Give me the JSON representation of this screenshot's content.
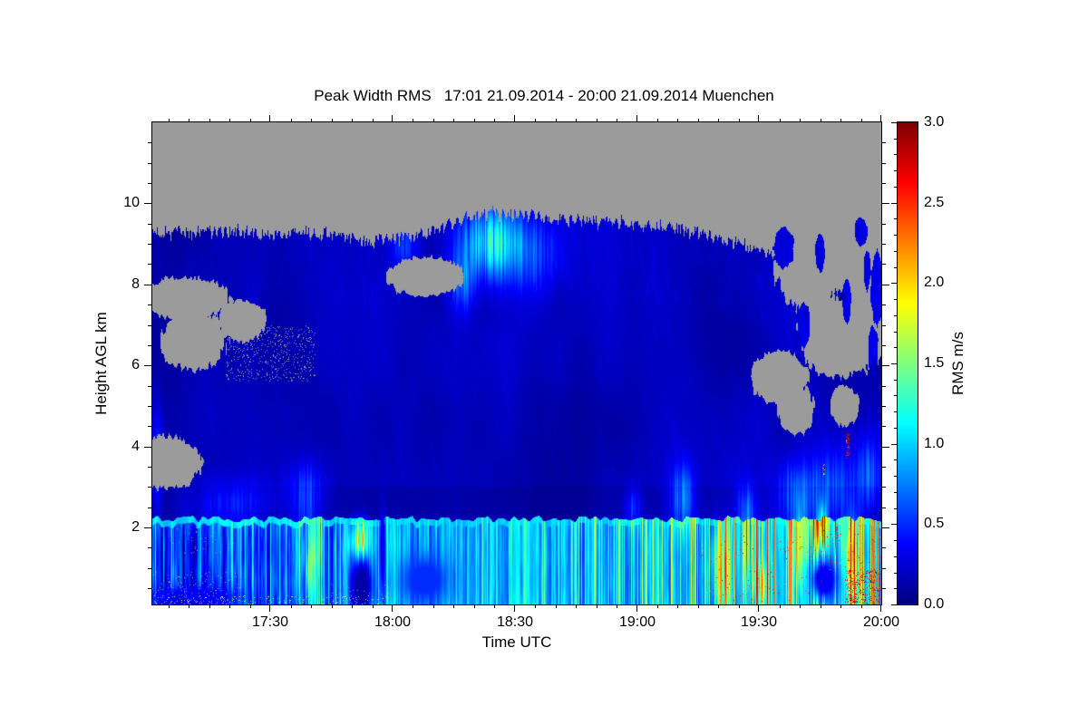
{
  "title": "Peak Width RMS   17:01 21.09.2014 - 20:00 21.09.2014 Muenchen",
  "background_color": "#ffffff",
  "chart_data": {
    "type": "heatmap",
    "title": "Peak Width RMS   17:01 21.09.2014 - 20:00 21.09.2014 Muenchen",
    "station": "Muenchen",
    "time_start": "17:01 21.09.2014",
    "time_end": "20:00 21.09.2014",
    "xlabel": "Time UTC",
    "ylabel": "Height AGL km",
    "x_ticks": [
      "17:30",
      "18:00",
      "18:30",
      "19:00",
      "19:30",
      "20:00"
    ],
    "x_tick_minutes": [
      29,
      59,
      89,
      119,
      149,
      179
    ],
    "x_minor_phase_min": 4,
    "x_minor_step_min": 5,
    "duration_min": 179,
    "y_ticks": [
      "2",
      "4",
      "6",
      "8",
      "10"
    ],
    "y_tick_values": [
      2,
      4,
      6,
      8,
      10
    ],
    "y_minor_step_km": 0.5,
    "y_range_km": [
      0.1,
      12.0
    ],
    "grid": false,
    "colorbar": {
      "label": "RMS m/s",
      "ticks": [
        "0.0",
        "0.5",
        "1.0",
        "1.5",
        "2.0",
        "2.5",
        "3.0"
      ],
      "tick_values": [
        0,
        0.5,
        1,
        1.5,
        2,
        2.5,
        3
      ],
      "minor_step": 0.1,
      "range": [
        0,
        3
      ],
      "colormap": "jet"
    },
    "no_data_color": "#9b9b9b",
    "field": {
      "description": "RMS of peak width (m/s) vs time and height. Gray = no data. Cloud/aerosol layer below ~9.3-9.8 km cloud top with low RMS (~0.2, dark blue); bright cyan convective boundary layer below ~2.2 km (~0.8-1.1); cirrus fallstreaks ~18:20-18:40 at 8-9.7 km; data gaps at left 3-8 km, an oval gap ~18:00-18:15 at 8.2 km, and large broken gaps after ~19:35 at 4-9.5 km; yellow-orange turbulence streaks in the boundary layer (esp. 17:50 and after 19:15) and red specks (RMS>2.2) near the ground after 19:45.",
      "free_base": 0.17,
      "bl_top_km": 2.2,
      "edge_jitter_km": 0.18,
      "dark_band": {
        "h0": 2.25,
        "h1": 3.0,
        "delta": 0.05
      },
      "cloud_top_km": [
        [
          0,
          9.3
        ],
        [
          10,
          9.25
        ],
        [
          20,
          9.32
        ],
        [
          30,
          9.2
        ],
        [
          38,
          9.28
        ],
        [
          46,
          9.2
        ],
        [
          54,
          9.05
        ],
        [
          62,
          9.15
        ],
        [
          70,
          9.35
        ],
        [
          77,
          9.65
        ],
        [
          83,
          9.75
        ],
        [
          90,
          9.7
        ],
        [
          98,
          9.63
        ],
        [
          108,
          9.55
        ],
        [
          118,
          9.48
        ],
        [
          128,
          9.4
        ],
        [
          136,
          9.22
        ],
        [
          144,
          9.0
        ],
        [
          150,
          8.8
        ],
        [
          156,
          8.55
        ],
        [
          162,
          8.4
        ],
        [
          167,
          8.5
        ],
        [
          172,
          8.6
        ],
        [
          179,
          8.45
        ]
      ],
      "bl_base": [
        [
          0,
          0.55
        ],
        [
          34,
          0.6
        ],
        [
          44,
          0.78
        ],
        [
          49,
          0.7
        ],
        [
          53,
          0.8
        ],
        [
          58,
          0.88
        ],
        [
          66,
          0.8
        ],
        [
          76,
          0.82
        ],
        [
          88,
          0.88
        ],
        [
          100,
          0.9
        ],
        [
          112,
          0.82
        ],
        [
          122,
          0.88
        ],
        [
          132,
          0.82
        ],
        [
          142,
          0.85
        ],
        [
          152,
          0.95
        ],
        [
          166,
          0.98
        ],
        [
          179,
          0.92
        ]
      ],
      "bl_contrast": [
        [
          0,
          1.55
        ],
        [
          42,
          1.55
        ],
        [
          50,
          1.2
        ],
        [
          58,
          1.0
        ],
        [
          179,
          1.0
        ]
      ],
      "streak_boost": [
        [
          0,
          1.0
        ],
        [
          45,
          1.0
        ],
        [
          60,
          0.6
        ],
        [
          95,
          0.7
        ],
        [
          110,
          1.0
        ],
        [
          130,
          1.2
        ],
        [
          140,
          1.8
        ],
        [
          160,
          2.2
        ],
        [
          179,
          2.3
        ]
      ],
      "plumes": [
        {
          "t": 83,
          "h": 9.05,
          "tw": 7,
          "hw": 0.85,
          "a": 0.9
        },
        {
          "t": 93,
          "h": 8.8,
          "tw": 8,
          "hw": 0.95,
          "a": 0.4
        },
        {
          "t": 76,
          "h": 8.05,
          "tw": 3,
          "hw": 0.75,
          "a": 0.5
        },
        {
          "t": 62,
          "h": 8.9,
          "tw": 3,
          "hw": 0.55,
          "a": 0.35
        },
        {
          "t": 20,
          "h": 2.6,
          "tw": 12,
          "hw": 0.55,
          "a": 0.3
        },
        {
          "t": 38,
          "h": 2.9,
          "tw": 4,
          "hw": 0.75,
          "a": 0.42
        },
        {
          "t": 130,
          "h": 2.7,
          "tw": 3,
          "hw": 0.85,
          "a": 0.55
        },
        {
          "t": 118,
          "h": 2.5,
          "tw": 2,
          "hw": 0.5,
          "a": 0.4
        },
        {
          "t": 158,
          "h": 2.8,
          "tw": 5,
          "hw": 0.85,
          "a": 0.5
        },
        {
          "t": 167,
          "h": 2.9,
          "tw": 6,
          "hw": 1.0,
          "a": 0.45
        },
        {
          "t": 176,
          "h": 3.3,
          "tw": 3,
          "hw": 0.95,
          "a": 0.45
        },
        {
          "t": 51,
          "h": 1.6,
          "tw": 2.2,
          "hw": 0.5,
          "a": 1.15
        },
        {
          "t": 38,
          "h": 1.2,
          "tw": 2.5,
          "hw": 1.0,
          "a": 0.6
        },
        {
          "t": 140,
          "h": 1.0,
          "tw": 3,
          "hw": 0.9,
          "a": 0.5
        },
        {
          "t": 146,
          "h": 1.5,
          "tw": 2,
          "hw": 0.8,
          "a": 0.55
        },
        {
          "t": 159,
          "h": 1.4,
          "tw": 1.6,
          "hw": 1.0,
          "a": 0.85
        },
        {
          "t": 164.5,
          "h": 2.0,
          "tw": 1.2,
          "hw": 0.55,
          "a": 1.0
        },
        {
          "t": 172,
          "h": 1.2,
          "tw": 2,
          "hw": 1.0,
          "a": 0.9
        },
        {
          "t": 150,
          "h": 0.6,
          "tw": 2,
          "hw": 0.5,
          "a": 0.6
        },
        {
          "t": 1,
          "h": 3.5,
          "tw": 1.2,
          "hw": 1.3,
          "a": 0.5
        },
        {
          "t": 146,
          "h": 2.5,
          "tw": 2.5,
          "hw": 0.6,
          "a": 0.4
        }
      ],
      "darks": [
        {
          "t": 51.5,
          "h": 0.55,
          "tw": 2.6,
          "hw": 0.7,
          "to": 0.12
        },
        {
          "t": 56.5,
          "h": 1.5,
          "tw": 0.7,
          "hw": 1.2,
          "to": 0.3
        },
        {
          "t": 165,
          "h": 0.7,
          "tw": 3.5,
          "hw": 0.55,
          "to": 0.35
        },
        {
          "t": 10,
          "h": 0.25,
          "tw": 12,
          "hw": 0.3,
          "to": 0.35
        },
        {
          "t": 67,
          "h": 0.7,
          "tw": 6,
          "hw": 0.6,
          "to": 0.5
        }
      ],
      "holes": [
        {
          "t": 8,
          "h": 7.65,
          "tr": 11,
          "hr": 0.52
        },
        {
          "t": 10,
          "h": 6.6,
          "tr": 8,
          "hr": 0.7
        },
        {
          "t": 22,
          "h": 7.1,
          "tr": 6,
          "hr": 0.5
        },
        {
          "t": 3,
          "h": 3.6,
          "tr": 9,
          "hr": 0.65
        },
        {
          "t": 67,
          "h": 8.2,
          "tr": 9.5,
          "hr": 0.48
        },
        {
          "t": 154,
          "h": 5.7,
          "tr": 7,
          "hr": 0.65
        },
        {
          "t": 161,
          "h": 8.4,
          "tr": 8,
          "hr": 1.0
        },
        {
          "t": 168,
          "h": 6.7,
          "tr": 9,
          "hr": 1.0
        },
        {
          "t": 172,
          "h": 8.6,
          "tr": 7,
          "hr": 0.9
        },
        {
          "t": 158,
          "h": 4.9,
          "tr": 4.5,
          "hr": 0.6
        },
        {
          "t": 170,
          "h": 5.0,
          "tr": 3.5,
          "hr": 0.5
        },
        {
          "t": 176,
          "h": 7.5,
          "tr": 4,
          "hr": 1.6
        },
        {
          "t": 166,
          "h": 9.0,
          "tr": 5,
          "hr": 0.7
        }
      ],
      "fragments": [
        {
          "t": 155,
          "h": 8.9,
          "tr": 2.5,
          "hr": 0.5,
          "v": 0.25
        },
        {
          "t": 151.5,
          "h": 7.8,
          "tr": 1.3,
          "hr": 0.9,
          "v": 0.25
        },
        {
          "t": 160,
          "h": 7.0,
          "tr": 1.5,
          "hr": 0.55,
          "v": 0.28
        },
        {
          "t": 164,
          "h": 8.8,
          "tr": 1.2,
          "hr": 0.45,
          "v": 0.25
        },
        {
          "t": 170.5,
          "h": 7.6,
          "tr": 1.1,
          "hr": 0.55,
          "v": 0.3
        },
        {
          "t": 178,
          "h": 7.9,
          "tr": 1.6,
          "hr": 0.9,
          "v": 0.3
        },
        {
          "t": 177,
          "h": 6.3,
          "tr": 1.2,
          "hr": 0.7,
          "v": 0.3
        },
        {
          "t": 174,
          "h": 9.3,
          "tr": 1.5,
          "hr": 0.35,
          "v": 0.25
        },
        {
          "t": 175.5,
          "h": 8.35,
          "tr": 0.8,
          "hr": 0.5,
          "v": 0.28
        }
      ],
      "specks": [
        {
          "t0": 170,
          "t1": 179,
          "h0": 0.1,
          "h1": 0.95,
          "density": 0.2,
          "v0": 2.2,
          "v1": 3.0
        },
        {
          "t0": 164,
          "t1": 179,
          "h0": 0.95,
          "h1": 2.1,
          "density": 0.03,
          "v0": 2.0,
          "v1": 2.8
        },
        {
          "t0": 135,
          "t1": 165,
          "h0": 0.1,
          "h1": 1.8,
          "density": 0.012,
          "v0": 2.0,
          "v1": 2.8
        },
        {
          "t0": 170.3,
          "t1": 171.3,
          "h0": 3.7,
          "h1": 4.35,
          "density": 0.4,
          "v0": 2.2,
          "v1": 3.0
        },
        {
          "t0": 164.5,
          "t1": 165.3,
          "h0": 3.3,
          "h1": 3.6,
          "density": 0.3,
          "v0": 1.8,
          "v1": 2.4
        },
        {
          "t0": 0,
          "t1": 22,
          "h0": 0.1,
          "h1": 0.9,
          "density": 0.03,
          "gray": true
        },
        {
          "t0": 5,
          "t1": 20,
          "h0": 1.3,
          "h1": 2.0,
          "density": 0.012,
          "gray": true
        },
        {
          "t0": 18,
          "t1": 40,
          "h0": 5.6,
          "h1": 7.0,
          "density": 0.08,
          "gray": true
        },
        {
          "t0": 0,
          "t1": 58,
          "h0": 0.1,
          "h1": 0.32,
          "density": 0.05,
          "v0": 1.3,
          "v1": 2.1
        },
        {
          "t0": 42,
          "t1": 60,
          "h0": 0.1,
          "h1": 0.6,
          "density": 0.02,
          "gray": true
        }
      ]
    }
  }
}
